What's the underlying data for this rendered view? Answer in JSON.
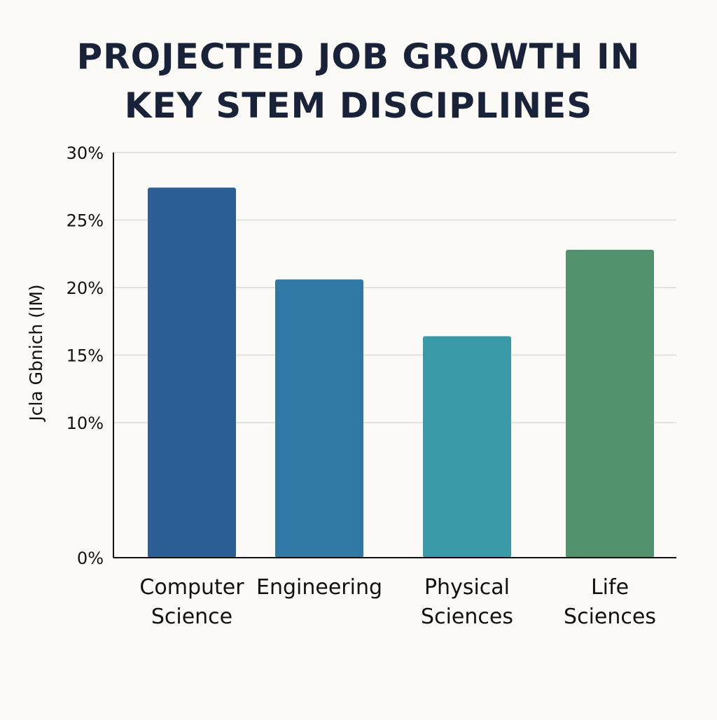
{
  "chart_data": {
    "type": "bar",
    "title_lines": [
      "PROJECTED JOB GROWTH IN",
      "KEY STEM DISCIPLINES"
    ],
    "ylabel": "Jcla Gbnich (IM)",
    "xlabel": "",
    "categories": [
      [
        "Computer",
        "Science"
      ],
      [
        "Engineering"
      ],
      [
        "Physical",
        "Sciences"
      ],
      [
        "Life",
        "Sciences"
      ]
    ],
    "values": [
      27.4,
      20.6,
      16.4,
      22.8
    ],
    "unit": "%",
    "ylim": [
      0,
      30
    ],
    "y_tick_labels": [
      "0%",
      "10%",
      "15%",
      "20%",
      "25%",
      "30%"
    ],
    "y_tick_values": [
      0,
      10,
      15,
      20,
      25,
      30
    ],
    "grid": true,
    "legend": "none",
    "bar_colors": [
      "#2b5f96",
      "#3079a6",
      "#3999a6",
      "#51916c"
    ],
    "colors": {
      "background": "#fcfaf7",
      "title": "#18233a",
      "gridline": "#e4e2de",
      "axis": "#111111"
    }
  }
}
